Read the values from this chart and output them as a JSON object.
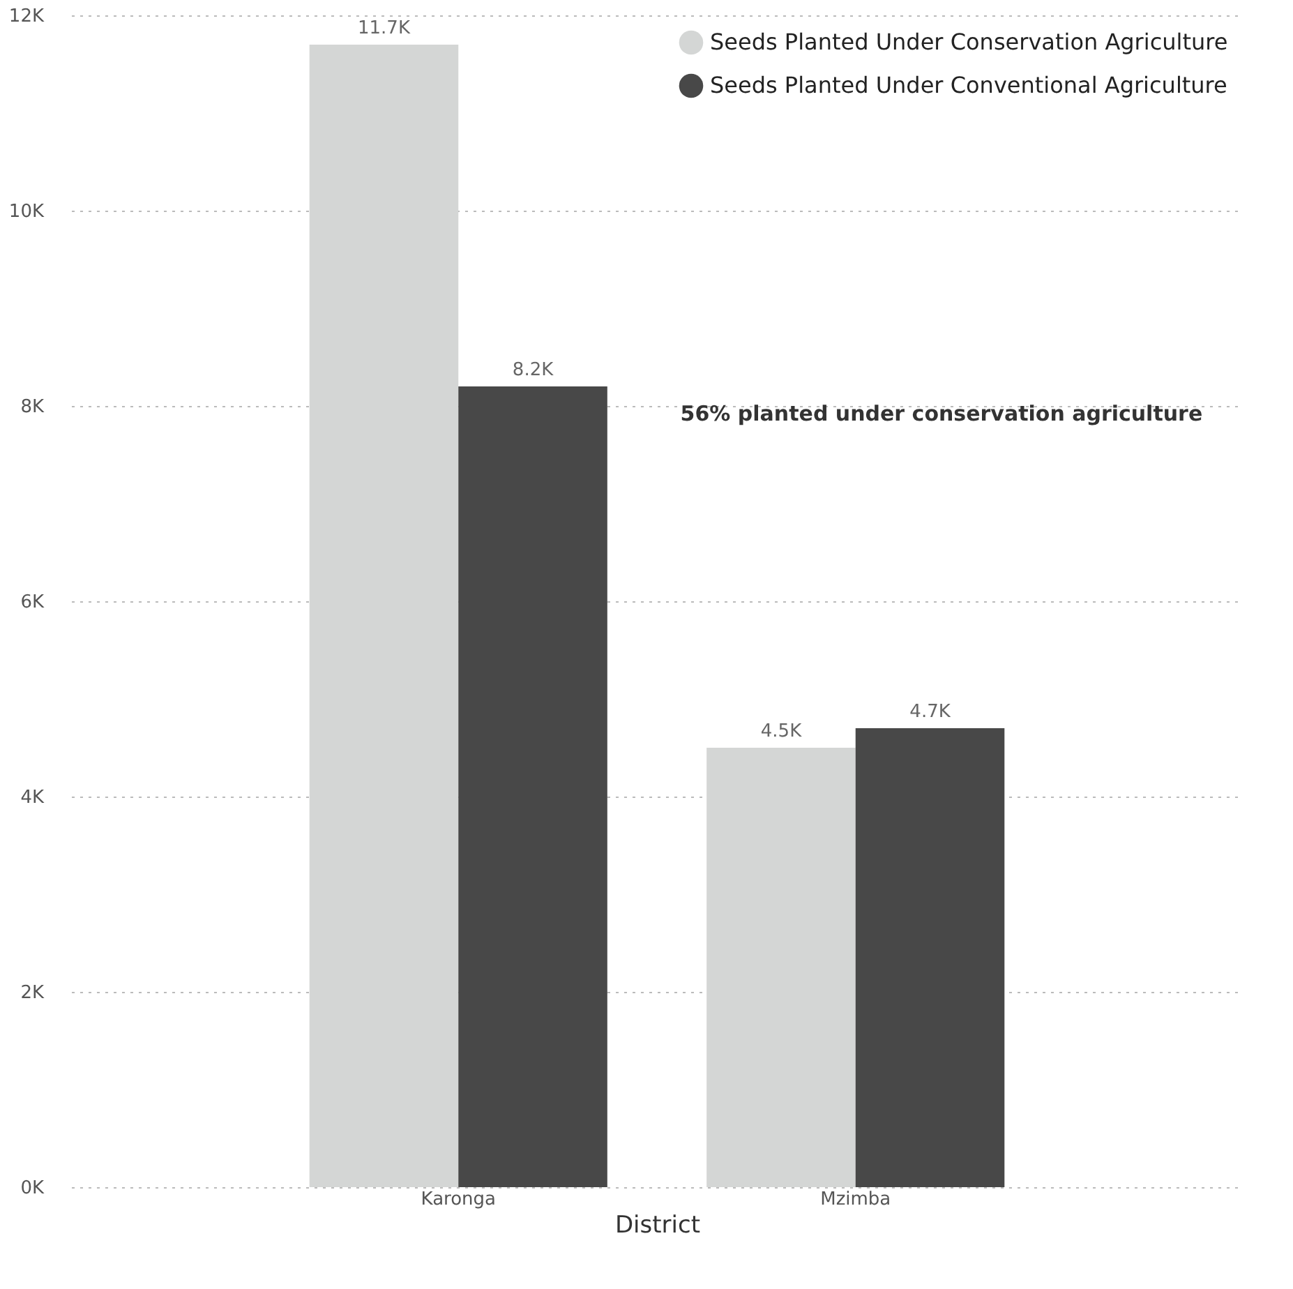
{
  "chart_data": {
    "type": "bar",
    "xlabel": "District",
    "categories": [
      "Karonga",
      "Mzimba"
    ],
    "series": [
      {
        "name": "Seeds Planted Under Conservation Agriculture",
        "color": "#d4d6d5",
        "values": [
          11700,
          4500
        ],
        "value_labels": [
          "11.7K",
          "4.5K"
        ]
      },
      {
        "name": "Seeds Planted Under Conventional Agriculture",
        "color": "#484848",
        "values": [
          8200,
          4700
        ],
        "value_labels": [
          "8.2K",
          "4.7K"
        ]
      }
    ],
    "ylim": [
      0,
      12000
    ],
    "yticks": [
      {
        "value": 0,
        "label": "0K"
      },
      {
        "value": 2000,
        "label": "2K"
      },
      {
        "value": 4000,
        "label": "4K"
      },
      {
        "value": 6000,
        "label": "6K"
      },
      {
        "value": 8000,
        "label": "8K"
      },
      {
        "value": 10000,
        "label": "10K"
      },
      {
        "value": 12000,
        "label": "12K"
      }
    ],
    "grid": "y",
    "legend": "top right",
    "annotations": [
      "56% planted under conservation agriculture"
    ]
  }
}
